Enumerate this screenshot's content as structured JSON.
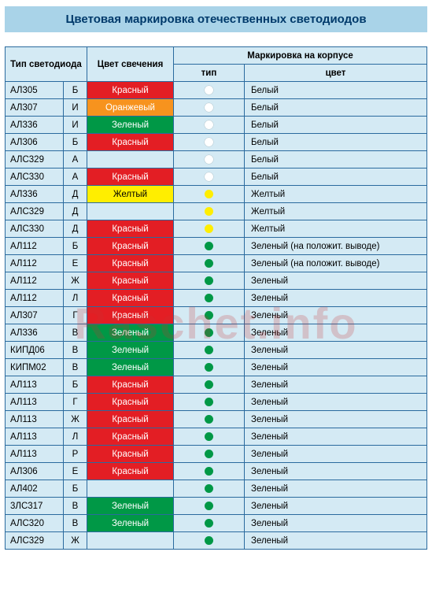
{
  "title": "Цветовая маркировка отечественных светодиодов",
  "title_bg": "#a9d3e8",
  "title_color": "#003a6b",
  "page_bg": "#ffffff",
  "border_color": "#2a6a9e",
  "header_bg": "#d4eaf4",
  "row_bg": "#d4eaf4",
  "watermark": "Raschet.info",
  "headers": {
    "type": "Тип светодиода",
    "glow": "Цвет свечения",
    "marking": "Маркировка на корпусе",
    "mark_type": "тип",
    "mark_color": "цвет"
  },
  "glow_colors": {
    "red": {
      "bg": "#e31e24",
      "fg": "#ffffff",
      "label": "Красный"
    },
    "orange": {
      "bg": "#f7931e",
      "fg": "#ffffff",
      "label": "Оранжевый"
    },
    "green": {
      "bg": "#009846",
      "fg": "#ffffff",
      "label": "Зеленый"
    },
    "yellow": {
      "bg": "#ffee00",
      "fg": "#000000",
      "label": "Желтый"
    },
    "none": {
      "bg": "",
      "fg": "#000000",
      "label": ""
    }
  },
  "dot_colors": {
    "white": "#ffffff",
    "yellow": "#ffee00",
    "green": "#009846"
  },
  "mark_labels": {
    "white": "Белый",
    "yellow": "Желтый",
    "green": "Зеленый",
    "green_pos": "Зеленый (на положит. выводе)"
  },
  "rows": [
    {
      "type": "АЛ305",
      "letter": "Б",
      "glow": "red",
      "dot": "white",
      "mark": "white"
    },
    {
      "type": "АЛ307",
      "letter": "И",
      "glow": "orange",
      "dot": "white",
      "mark": "white"
    },
    {
      "type": "АЛ336",
      "letter": "И",
      "glow": "green",
      "dot": "white",
      "mark": "white"
    },
    {
      "type": "АЛ306",
      "letter": "Б",
      "glow": "red",
      "dot": "white",
      "mark": "white"
    },
    {
      "type": "АЛС329",
      "letter": "А",
      "glow": "none",
      "dot": "white",
      "mark": "white"
    },
    {
      "type": "АЛС330",
      "letter": "А",
      "glow": "red",
      "dot": "white",
      "mark": "white"
    },
    {
      "type": "АЛ336",
      "letter": "Д",
      "glow": "yellow",
      "dot": "yellow",
      "mark": "yellow"
    },
    {
      "type": "АЛС329",
      "letter": "Д",
      "glow": "none",
      "dot": "yellow",
      "mark": "yellow"
    },
    {
      "type": "АЛС330",
      "letter": "Д",
      "glow": "red",
      "dot": "yellow",
      "mark": "yellow"
    },
    {
      "type": "АЛ112",
      "letter": "Б",
      "glow": "red",
      "dot": "green",
      "mark": "green_pos"
    },
    {
      "type": "АЛ112",
      "letter": "Е",
      "glow": "red",
      "dot": "green",
      "mark": "green_pos"
    },
    {
      "type": "АЛ112",
      "letter": "Ж",
      "glow": "red",
      "dot": "green",
      "mark": "green"
    },
    {
      "type": "АЛ112",
      "letter": "Л",
      "glow": "red",
      "dot": "green",
      "mark": "green"
    },
    {
      "type": "АЛ307",
      "letter": "Г",
      "glow": "red",
      "dot": "green",
      "mark": "green"
    },
    {
      "type": "АЛ336",
      "letter": "В",
      "glow": "green",
      "dot": "green",
      "mark": "green"
    },
    {
      "type": "КИПД06",
      "letter": "В",
      "glow": "green",
      "dot": "green",
      "mark": "green"
    },
    {
      "type": "КИПМ02",
      "letter": "В",
      "glow": "green",
      "dot": "green",
      "mark": "green"
    },
    {
      "type": "АЛ113",
      "letter": "Б",
      "glow": "red",
      "dot": "green",
      "mark": "green"
    },
    {
      "type": "АЛ113",
      "letter": "Г",
      "glow": "red",
      "dot": "green",
      "mark": "green"
    },
    {
      "type": "АЛ113",
      "letter": "Ж",
      "glow": "red",
      "dot": "green",
      "mark": "green"
    },
    {
      "type": "АЛ113",
      "letter": "Л",
      "glow": "red",
      "dot": "green",
      "mark": "green"
    },
    {
      "type": "АЛ113",
      "letter": "Р",
      "glow": "red",
      "dot": "green",
      "mark": "green"
    },
    {
      "type": "АЛ306",
      "letter": "Е",
      "glow": "red",
      "dot": "green",
      "mark": "green"
    },
    {
      "type": "АЛ402",
      "letter": "Б",
      "glow": "none",
      "dot": "green",
      "mark": "green"
    },
    {
      "type": "3ЛС317",
      "letter": "В",
      "glow": "green",
      "dot": "green",
      "mark": "green"
    },
    {
      "type": "АЛС320",
      "letter": "В",
      "glow": "green",
      "dot": "green",
      "mark": "green"
    },
    {
      "type": "АЛС329",
      "letter": "Ж",
      "glow": "none",
      "dot": "green",
      "mark": "green"
    }
  ]
}
